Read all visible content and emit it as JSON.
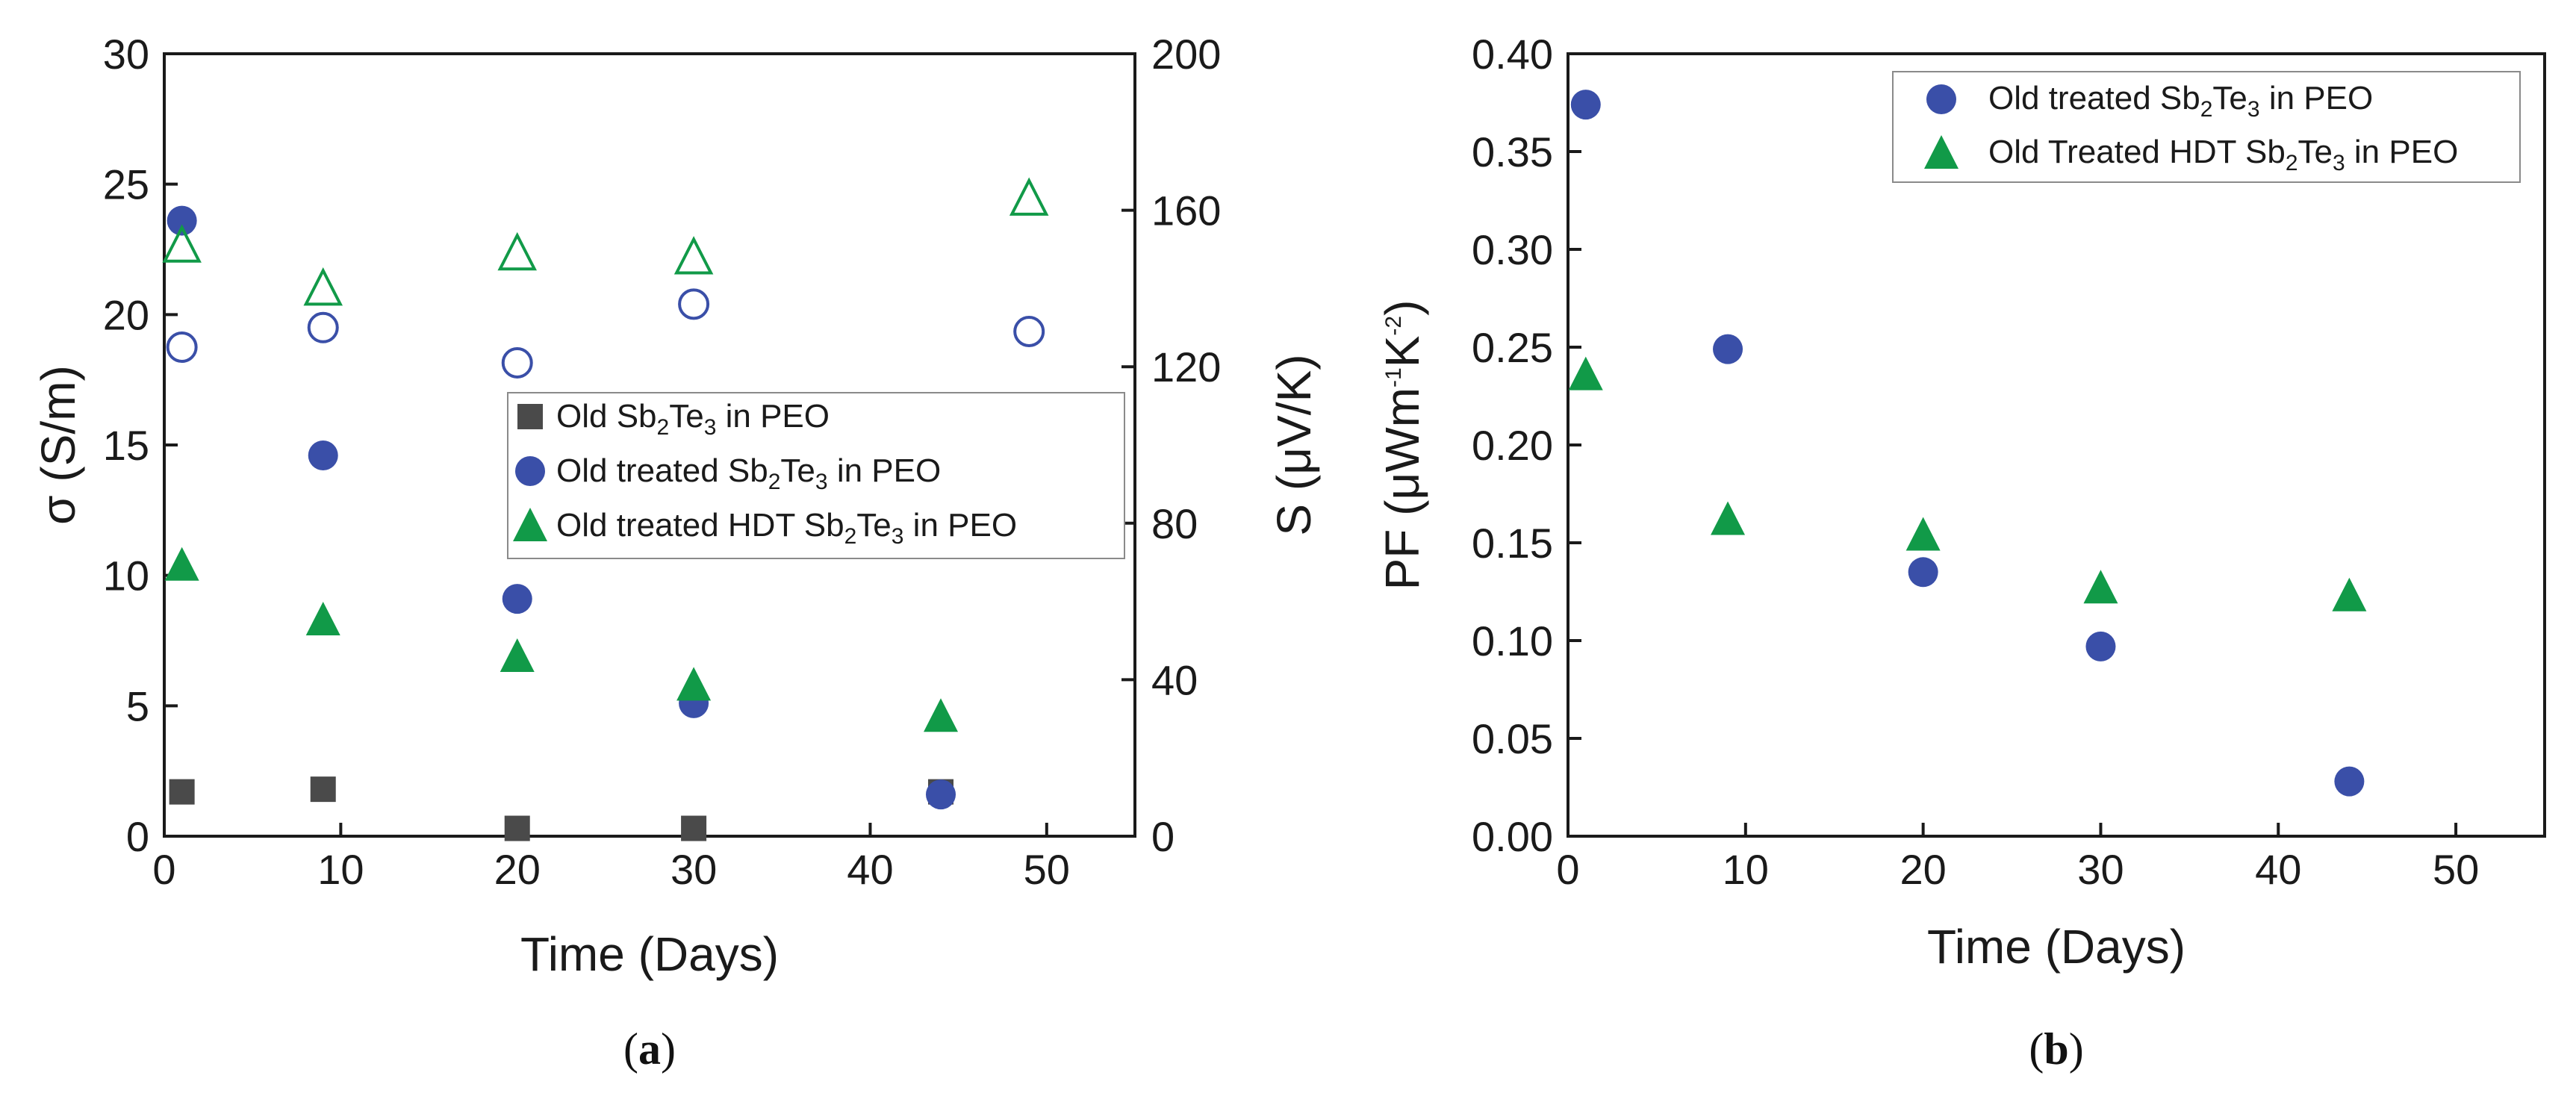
{
  "chart_data": [
    {
      "panel": "a",
      "type": "scatter",
      "caption": "(a)",
      "xlabel": "Time (Days)",
      "ylabel_left": "σ (S/m)",
      "ylabel_right": "S (μV/K)",
      "xlim": [
        0,
        55
      ],
      "ylim_left": [
        0,
        30
      ],
      "ylim_right": [
        0,
        200
      ],
      "xticks": [
        0,
        10,
        20,
        30,
        40,
        50
      ],
      "yticks_left": [
        0,
        5,
        10,
        15,
        20,
        25,
        30
      ],
      "yticks_right": [
        0,
        40,
        80,
        120,
        160,
        200
      ],
      "legend_position": "center-right",
      "legend": [
        {
          "pre": "Old Sb",
          "s1": "2",
          "mid": "Te",
          "s2": "3",
          "post": " in PEO",
          "marker": "square",
          "color": "#4a4a4a"
        },
        {
          "pre": "Old treated Sb",
          "s1": "2",
          "mid": "Te",
          "s2": "3",
          "post": " in PEO",
          "marker": "circle",
          "color": "#3a4fa8"
        },
        {
          "pre": "Old treated HDT Sb",
          "s1": "2",
          "mid": "Te",
          "s2": "3",
          "post": " in PEO",
          "marker": "triangle",
          "color": "#119a48"
        }
      ],
      "series": [
        {
          "axis": "left",
          "marker": "square",
          "fill": true,
          "color": "#4a4a4a",
          "x": [
            1,
            9,
            20,
            30,
            44
          ],
          "y": [
            1.7,
            1.8,
            0.3,
            0.3,
            1.7
          ]
        },
        {
          "axis": "left",
          "marker": "circle",
          "fill": true,
          "color": "#3a4fa8",
          "x": [
            1,
            9,
            20,
            30,
            44
          ],
          "y": [
            23.6,
            14.6,
            9.1,
            5.1,
            1.6
          ]
        },
        {
          "axis": "left",
          "marker": "triangle",
          "fill": true,
          "color": "#119a48",
          "x": [
            1,
            9,
            20,
            30,
            44
          ],
          "y": [
            10.4,
            8.3,
            6.9,
            5.8,
            4.6
          ]
        },
        {
          "axis": "right",
          "marker": "circle",
          "fill": false,
          "color": "#3a4fa8",
          "x": [
            1,
            9,
            20,
            30,
            49
          ],
          "y": [
            125,
            130,
            121,
            136,
            129
          ]
        },
        {
          "axis": "right",
          "marker": "triangle",
          "fill": false,
          "color": "#119a48",
          "x": [
            1,
            9,
            20,
            30,
            49
          ],
          "y": [
            151,
            140,
            149,
            148,
            163
          ]
        }
      ]
    },
    {
      "panel": "b",
      "type": "scatter",
      "caption": "(b)",
      "xlabel": "Time (Days)",
      "ylabel": "PF (μWm⁻¹K⁻²)",
      "xlim": [
        0,
        55
      ],
      "ylim": [
        0,
        0.4
      ],
      "xticks": [
        0,
        10,
        20,
        30,
        40,
        50
      ],
      "yticks": [
        "0.00",
        "0.05",
        "0.10",
        "0.15",
        "0.20",
        "0.25",
        "0.30",
        "0.35",
        "0.40"
      ],
      "legend_position": "top-right",
      "legend": [
        {
          "pre": "Old  treated Sb",
          "s1": "2",
          "mid": "Te",
          "s2": "3",
          "post": " in PEO",
          "marker": "circle",
          "color": "#3a4fa8"
        },
        {
          "pre": "Old Treated HDT Sb",
          "s1": "2",
          "mid": "Te",
          "s2": "3",
          "post": " in PEO",
          "marker": "triangle",
          "color": "#119a48"
        }
      ],
      "series": [
        {
          "marker": "circle",
          "fill": true,
          "color": "#3a4fa8",
          "x": [
            1,
            9,
            20,
            30,
            44
          ],
          "y": [
            0.374,
            0.249,
            0.135,
            0.097,
            0.028
          ]
        },
        {
          "marker": "triangle",
          "fill": true,
          "color": "#119a48",
          "x": [
            1,
            9,
            20,
            30,
            44
          ],
          "y": [
            0.236,
            0.162,
            0.154,
            0.127,
            0.123
          ]
        }
      ]
    }
  ]
}
